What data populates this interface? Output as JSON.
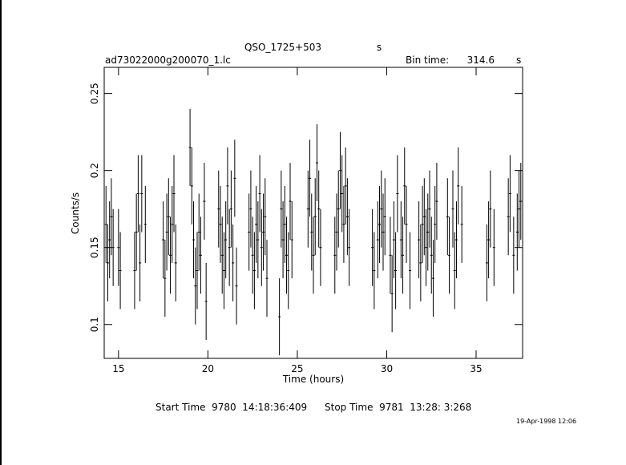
{
  "chart_data": {
    "type": "errorbar",
    "title": "QSO_1725+503",
    "title_unit": "s",
    "subtitle": "ad73022000g200070_1.lc",
    "bin_time_label": "Bin time:",
    "bin_time": 314.6,
    "bin_time_unit": "s",
    "xlabel": "Time (hours)",
    "ylabel": "Counts/s",
    "start_time": "Start Time  9780  14:18:36:409",
    "stop_time": "Stop Time  9781  13:28: 3:268",
    "date_stamp": "19-Apr-1998 12:06",
    "xlim": [
      14.2,
      37.6
    ],
    "ylim": [
      0.078,
      0.267
    ],
    "xticks": [
      15,
      20,
      25,
      30,
      35
    ],
    "yticks": [
      0.1,
      0.15,
      0.2,
      0.25
    ],
    "color": "#000000",
    "x": [
      14.3,
      14.4,
      14.5,
      14.6,
      14.7,
      15.0,
      15.1,
      15.9,
      16.0,
      16.1,
      16.2,
      16.3,
      16.5,
      17.5,
      17.6,
      17.7,
      17.8,
      17.9,
      18.0,
      18.1,
      18.2,
      19.0,
      19.1,
      19.2,
      19.3,
      19.4,
      19.5,
      19.6,
      19.8,
      19.9,
      20.6,
      20.7,
      20.8,
      20.9,
      21.0,
      21.1,
      21.2,
      21.3,
      21.4,
      21.5,
      21.6,
      22.3,
      22.4,
      22.5,
      22.6,
      22.7,
      22.8,
      22.9,
      23.0,
      23.1,
      23.2,
      23.3,
      24.0,
      24.1,
      24.2,
      24.3,
      24.4,
      24.5,
      24.6,
      24.7,
      25.6,
      25.7,
      25.8,
      25.9,
      26.0,
      26.1,
      26.2,
      26.3,
      27.1,
      27.2,
      27.3,
      27.4,
      27.5,
      27.6,
      27.7,
      27.8,
      27.9,
      29.2,
      29.3,
      29.5,
      29.6,
      29.7,
      29.8,
      29.9,
      30.2,
      30.3,
      30.4,
      30.5,
      30.6,
      30.8,
      30.9,
      31.0,
      31.1,
      31.3,
      31.8,
      31.9,
      32.0,
      32.1,
      32.2,
      32.3,
      32.4,
      32.5,
      32.6,
      32.7,
      32.8,
      33.4,
      33.5,
      33.7,
      33.8,
      33.9,
      34.0,
      34.2,
      35.6,
      35.7,
      35.8,
      36.0,
      36.8,
      36.9,
      37.1,
      37.3,
      37.4,
      37.5
    ],
    "values": [
      0.165,
      0.14,
      0.155,
      0.17,
      0.15,
      0.15,
      0.135,
      0.135,
      0.16,
      0.185,
      0.14,
      0.185,
      0.165,
      0.155,
      0.13,
      0.16,
      0.17,
      0.145,
      0.165,
      0.185,
      0.14,
      0.215,
      0.19,
      0.155,
      0.125,
      0.135,
      0.16,
      0.145,
      0.18,
      0.115,
      0.175,
      0.165,
      0.145,
      0.135,
      0.155,
      0.19,
      0.15,
      0.175,
      0.14,
      0.195,
      0.125,
      0.16,
      0.175,
      0.145,
      0.135,
      0.165,
      0.155,
      0.185,
      0.15,
      0.16,
      0.17,
      0.13,
      0.105,
      0.175,
      0.155,
      0.165,
      0.145,
      0.135,
      0.18,
      0.155,
      0.175,
      0.195,
      0.16,
      0.145,
      0.17,
      0.205,
      0.175,
      0.15,
      0.145,
      0.16,
      0.175,
      0.2,
      0.185,
      0.165,
      0.19,
      0.17,
      0.15,
      0.15,
      0.135,
      0.155,
      0.165,
      0.175,
      0.16,
      0.17,
      0.145,
      0.12,
      0.155,
      0.135,
      0.185,
      0.155,
      0.145,
      0.19,
      0.165,
      0.135,
      0.155,
      0.14,
      0.165,
      0.17,
      0.15,
      0.16,
      0.175,
      0.145,
      0.13,
      0.165,
      0.18,
      0.17,
      0.145,
      0.175,
      0.135,
      0.155,
      0.19,
      0.165,
      0.14,
      0.155,
      0.175,
      0.15,
      0.17,
      0.185,
      0.145,
      0.16,
      0.175,
      0.18
    ],
    "errors": [
      0.025,
      0.025,
      0.025,
      0.025,
      0.025,
      0.025,
      0.025,
      0.025,
      0.025,
      0.025,
      0.025,
      0.025,
      0.025,
      0.025,
      0.025,
      0.025,
      0.025,
      0.025,
      0.025,
      0.025,
      0.025,
      0.025,
      0.025,
      0.025,
      0.025,
      0.025,
      0.025,
      0.025,
      0.025,
      0.025,
      0.025,
      0.025,
      0.025,
      0.025,
      0.025,
      0.025,
      0.025,
      0.025,
      0.025,
      0.025,
      0.025,
      0.025,
      0.025,
      0.025,
      0.025,
      0.025,
      0.025,
      0.025,
      0.025,
      0.025,
      0.025,
      0.025,
      0.025,
      0.025,
      0.025,
      0.025,
      0.025,
      0.025,
      0.025,
      0.025,
      0.025,
      0.025,
      0.025,
      0.025,
      0.025,
      0.025,
      0.025,
      0.025,
      0.025,
      0.025,
      0.025,
      0.025,
      0.025,
      0.025,
      0.025,
      0.025,
      0.025,
      0.025,
      0.025,
      0.025,
      0.025,
      0.025,
      0.025,
      0.025,
      0.025,
      0.025,
      0.025,
      0.025,
      0.025,
      0.025,
      0.025,
      0.025,
      0.025,
      0.025,
      0.025,
      0.025,
      0.025,
      0.025,
      0.025,
      0.025,
      0.025,
      0.025,
      0.025,
      0.025,
      0.025,
      0.025,
      0.025,
      0.025,
      0.025,
      0.025,
      0.025,
      0.025,
      0.025,
      0.025,
      0.025,
      0.025,
      0.025,
      0.025,
      0.025,
      0.025,
      0.025,
      0.025
    ]
  }
}
